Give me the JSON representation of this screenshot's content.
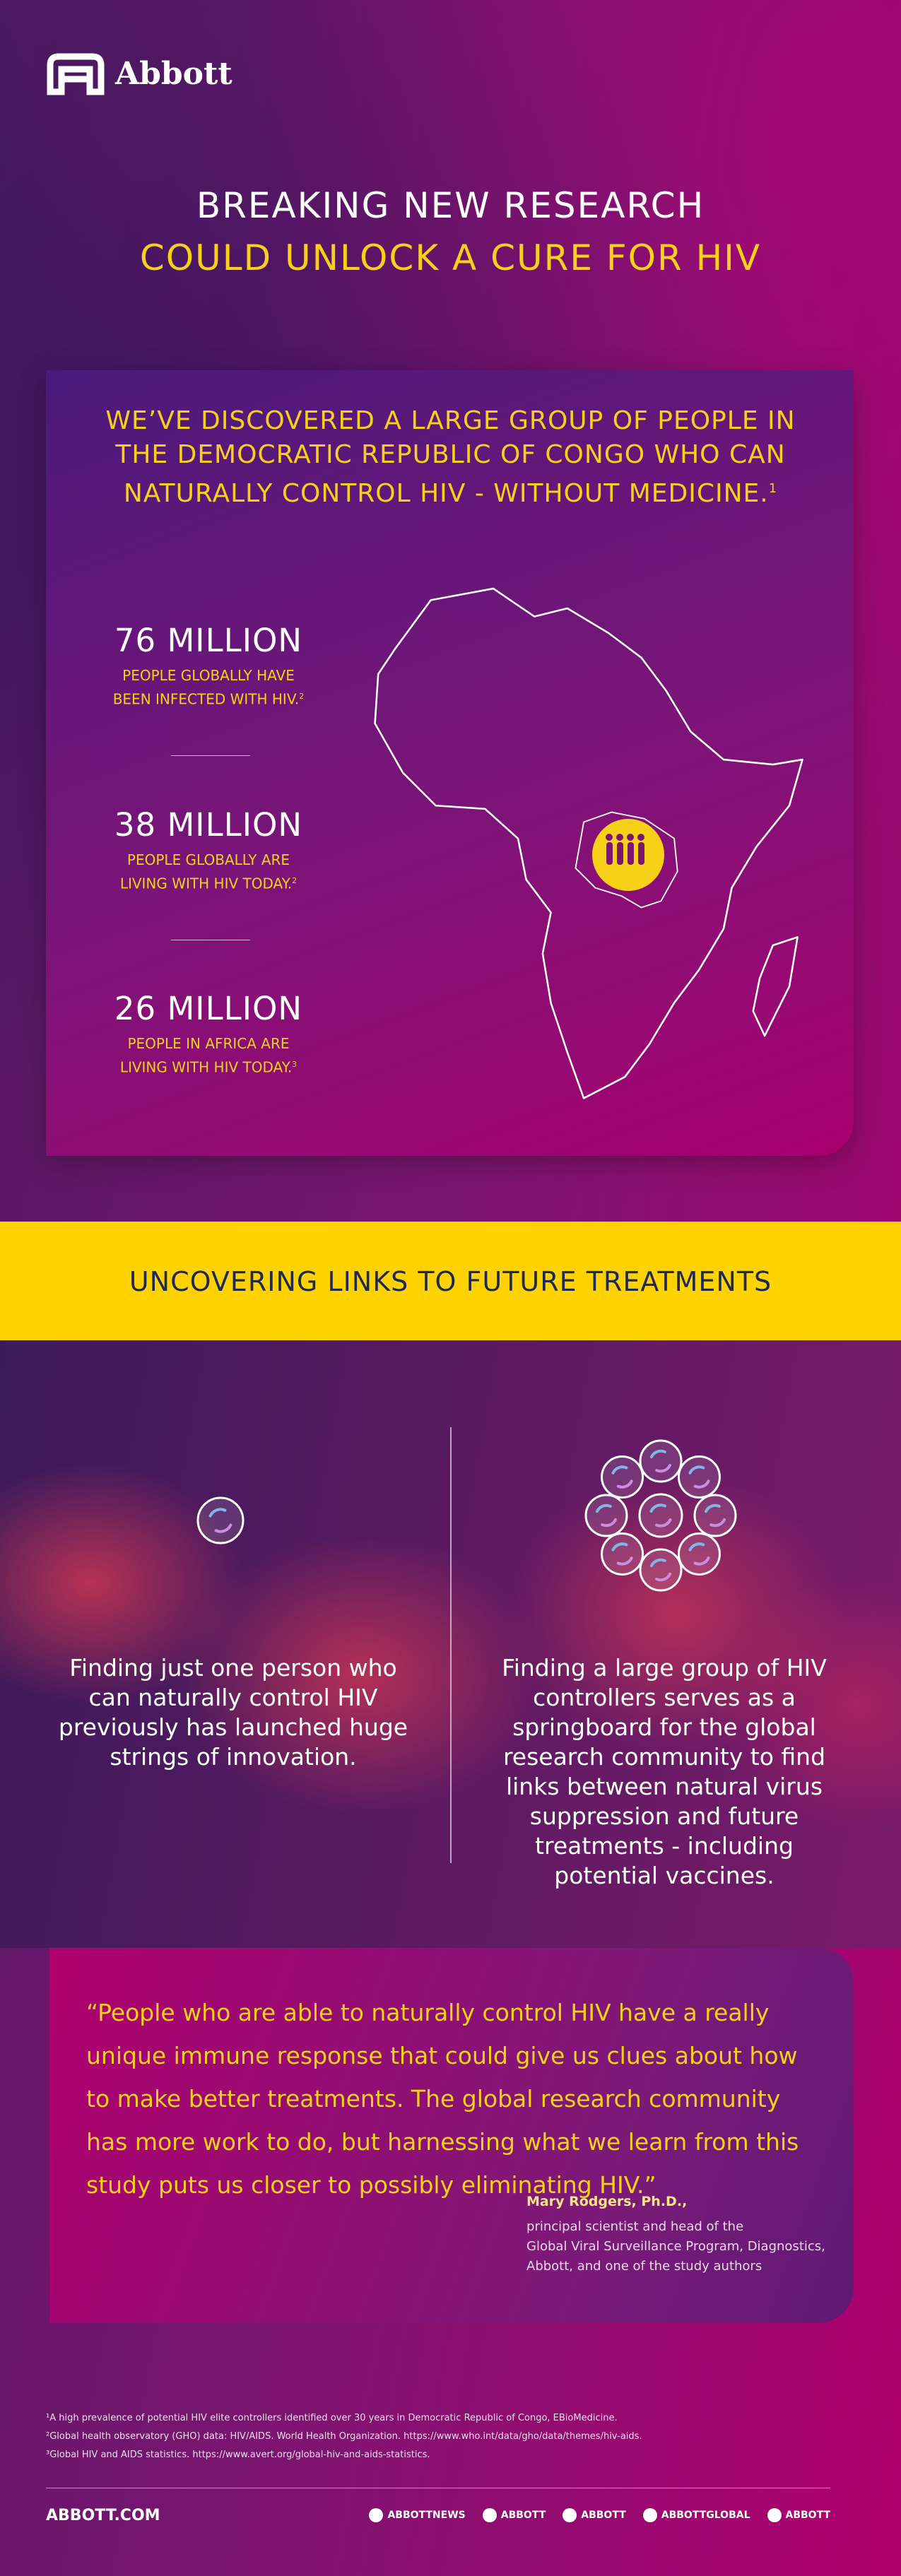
{
  "header": {
    "logo": "Abbott"
  },
  "title": {
    "line1": "BREAKING NEW RESEARCH",
    "line2": "COULD UNLOCK A CURE FOR HIV"
  },
  "discovery": {
    "headline": "WE’VE DISCOVERED A LARGE GROUP OF PEOPLE IN THE DEMOCRATIC REPUBLIC OF CONGO WHO CAN NATURALLY CONTROL HIV - WITHOUT MEDICINE.",
    "note": "1"
  },
  "stats": [
    {
      "value": "76 MILLION",
      "text": "PEOPLE  GLOBALLY HAVE BEEN INFECTED WITH HIV.",
      "note": "2"
    },
    {
      "value": "38 MILLION",
      "text": "PEOPLE GLOBALLY ARE LIVING WITH HIV TODAY.",
      "note": "2"
    },
    {
      "value": "26 MILLION",
      "text": "PEOPLE IN AFRICA ARE LIVING WITH HIV TODAY.",
      "note": "3"
    }
  ],
  "banner": "UNCOVERING LINKS TO FUTURE TREATMENTS",
  "findings": {
    "left": "Finding just one person who can naturally control HIV previously has launched huge strings of innovation.",
    "right": "Finding a large group of HIV controllers serves as a springboard for the global research community to find links between natural virus suppression and future treatments - including potential vaccines."
  },
  "quote": {
    "text": "“People who are able to naturally control HIV have a really unique immune response that could give us clues about how to make better treatments. The global research community has more work to do, but harnessing what we learn from this study puts us closer to possibly eliminating HIV.”",
    "author": "Mary Rodgers, Ph.D.,",
    "role": [
      "principal scientist and head of the",
      "Global Viral Surveillance Program, Diagnostics,",
      "Abbott, and one of the study authors"
    ]
  },
  "footnotes": [
    "¹A high prevalence of potential HIV elite controllers identified over 30 years in Democratic Republic of Congo, EBioMedicine.",
    "²Global health observatory (GHO) data: HIV/AIDS. World Health Organization. https://www.who.int/data/gho/data/themes/hiv-aids.",
    "³Global HIV and AIDS statistics. https://www.avert.org/global-hiv-and-aids-statistics."
  ],
  "footer": {
    "site": "ABBOTT.COM",
    "social": [
      "ABBOTTNEWS",
      "ABBOTT",
      "ABBOTT",
      "ABBOTTGLOBAL",
      "ABBOTT"
    ]
  }
}
